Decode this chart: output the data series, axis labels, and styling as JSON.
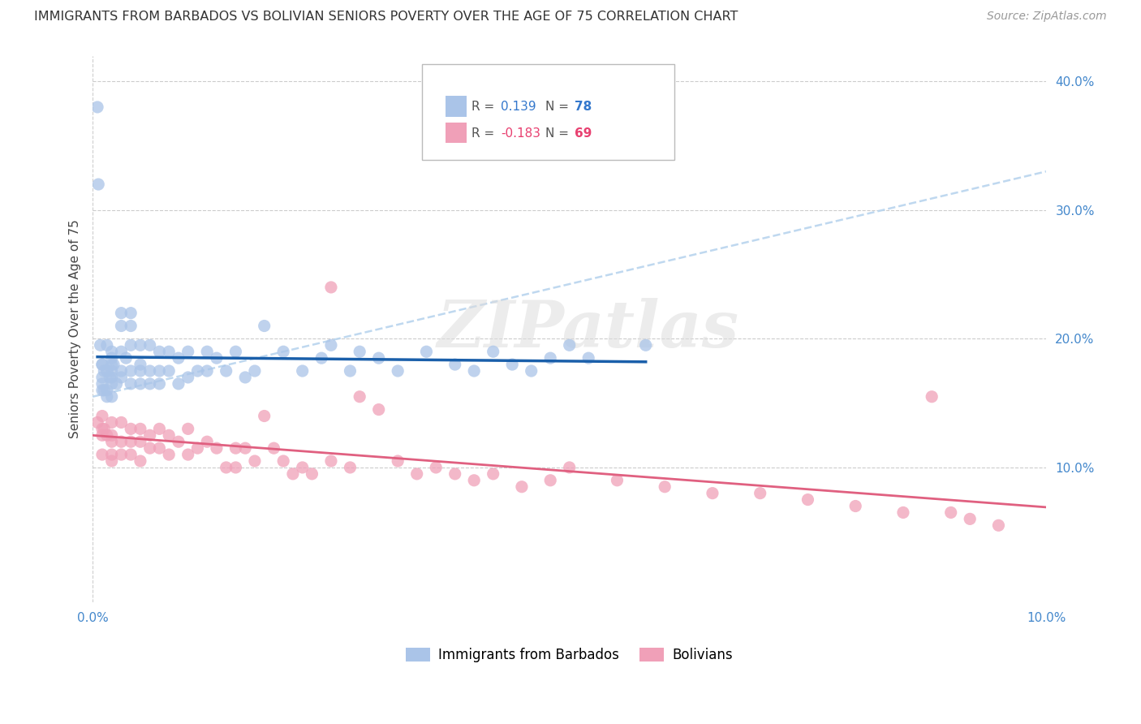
{
  "title": "IMMIGRANTS FROM BARBADOS VS BOLIVIAN SENIORS POVERTY OVER THE AGE OF 75 CORRELATION CHART",
  "source": "Source: ZipAtlas.com",
  "ylabel": "Seniors Poverty Over the Age of 75",
  "legend_label1": "Immigrants from Barbados",
  "legend_label2": "Bolivians",
  "r1": 0.139,
  "n1": 78,
  "r2": -0.183,
  "n2": 69,
  "xlim": [
    0.0,
    0.1
  ],
  "ylim": [
    -0.005,
    0.42
  ],
  "yticks": [
    0.1,
    0.2,
    0.3,
    0.4
  ],
  "ytick_labels": [
    "10.0%",
    "20.0%",
    "30.0%",
    "40.0%"
  ],
  "xticks": [
    0.0,
    0.1
  ],
  "xtick_labels": [
    "0.0%",
    "10.0%"
  ],
  "color_barbados": "#aac4e8",
  "color_bolivians": "#f0a0b8",
  "line_color_barbados": "#1a5faa",
  "line_color_bolivians": "#e06080",
  "line_color_dashed": "#b8d4ee",
  "watermark": "ZIPatlas",
  "barbados_x": [
    0.0005,
    0.0006,
    0.0008,
    0.001,
    0.001,
    0.001,
    0.001,
    0.001,
    0.0012,
    0.0012,
    0.0015,
    0.0015,
    0.0015,
    0.0015,
    0.0018,
    0.002,
    0.002,
    0.002,
    0.002,
    0.002,
    0.002,
    0.002,
    0.0022,
    0.0025,
    0.003,
    0.003,
    0.003,
    0.003,
    0.003,
    0.0035,
    0.004,
    0.004,
    0.004,
    0.004,
    0.004,
    0.005,
    0.005,
    0.005,
    0.005,
    0.006,
    0.006,
    0.006,
    0.007,
    0.007,
    0.007,
    0.008,
    0.008,
    0.009,
    0.009,
    0.01,
    0.01,
    0.011,
    0.012,
    0.012,
    0.013,
    0.014,
    0.015,
    0.016,
    0.017,
    0.018,
    0.02,
    0.022,
    0.024,
    0.025,
    0.027,
    0.028,
    0.03,
    0.032,
    0.035,
    0.038,
    0.04,
    0.042,
    0.044,
    0.046,
    0.048,
    0.05,
    0.052,
    0.058
  ],
  "barbados_y": [
    0.38,
    0.32,
    0.195,
    0.18,
    0.18,
    0.17,
    0.165,
    0.16,
    0.175,
    0.16,
    0.195,
    0.175,
    0.16,
    0.155,
    0.17,
    0.19,
    0.185,
    0.18,
    0.175,
    0.17,
    0.165,
    0.155,
    0.18,
    0.165,
    0.22,
    0.21,
    0.19,
    0.175,
    0.17,
    0.185,
    0.22,
    0.21,
    0.195,
    0.175,
    0.165,
    0.195,
    0.18,
    0.175,
    0.165,
    0.195,
    0.175,
    0.165,
    0.19,
    0.175,
    0.165,
    0.19,
    0.175,
    0.185,
    0.165,
    0.19,
    0.17,
    0.175,
    0.19,
    0.175,
    0.185,
    0.175,
    0.19,
    0.17,
    0.175,
    0.21,
    0.19,
    0.175,
    0.185,
    0.195,
    0.175,
    0.19,
    0.185,
    0.175,
    0.19,
    0.18,
    0.175,
    0.19,
    0.18,
    0.175,
    0.185,
    0.195,
    0.185,
    0.195
  ],
  "bolivians_x": [
    0.0005,
    0.001,
    0.001,
    0.001,
    0.001,
    0.0012,
    0.0015,
    0.002,
    0.002,
    0.002,
    0.002,
    0.002,
    0.003,
    0.003,
    0.003,
    0.004,
    0.004,
    0.004,
    0.005,
    0.005,
    0.005,
    0.006,
    0.006,
    0.007,
    0.007,
    0.008,
    0.008,
    0.009,
    0.01,
    0.01,
    0.011,
    0.012,
    0.013,
    0.014,
    0.015,
    0.015,
    0.016,
    0.017,
    0.018,
    0.019,
    0.02,
    0.021,
    0.022,
    0.023,
    0.025,
    0.025,
    0.027,
    0.028,
    0.03,
    0.032,
    0.034,
    0.036,
    0.038,
    0.04,
    0.042,
    0.045,
    0.048,
    0.05,
    0.055,
    0.06,
    0.065,
    0.07,
    0.075,
    0.08,
    0.085,
    0.088,
    0.09,
    0.092,
    0.095
  ],
  "bolivians_y": [
    0.135,
    0.14,
    0.13,
    0.125,
    0.11,
    0.13,
    0.125,
    0.135,
    0.125,
    0.12,
    0.11,
    0.105,
    0.135,
    0.12,
    0.11,
    0.13,
    0.12,
    0.11,
    0.13,
    0.12,
    0.105,
    0.125,
    0.115,
    0.13,
    0.115,
    0.125,
    0.11,
    0.12,
    0.13,
    0.11,
    0.115,
    0.12,
    0.115,
    0.1,
    0.115,
    0.1,
    0.115,
    0.105,
    0.14,
    0.115,
    0.105,
    0.095,
    0.1,
    0.095,
    0.24,
    0.105,
    0.1,
    0.155,
    0.145,
    0.105,
    0.095,
    0.1,
    0.095,
    0.09,
    0.095,
    0.085,
    0.09,
    0.1,
    0.09,
    0.085,
    0.08,
    0.08,
    0.075,
    0.07,
    0.065,
    0.155,
    0.065,
    0.06,
    0.055
  ]
}
